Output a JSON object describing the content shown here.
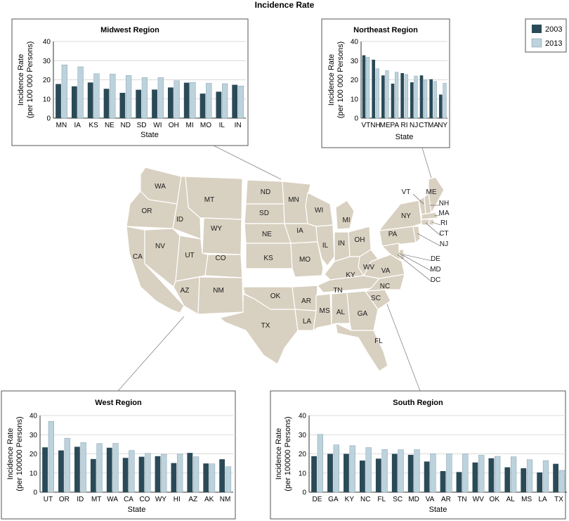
{
  "title": "Incidence Rate",
  "legend": {
    "placement": "top-right",
    "items": [
      {
        "label": "2003",
        "color": "#2a4a58"
      },
      {
        "label": "2013",
        "color": "#bcd2dc"
      }
    ]
  },
  "colors": {
    "map_fill": "#d8d0c0",
    "map_stroke": "#ffffff",
    "frame": "#555555",
    "connector": "#888888"
  },
  "map_labels": [
    "WA",
    "OR",
    "CA",
    "ID",
    "NV",
    "MT",
    "WY",
    "UT",
    "CO",
    "AZ",
    "NM",
    "ND",
    "SD",
    "NE",
    "KS",
    "OK",
    "TX",
    "MN",
    "IA",
    "MO",
    "AR",
    "LA",
    "WI",
    "IL",
    "MI",
    "IN",
    "OH",
    "KY",
    "TN",
    "MS",
    "AL",
    "GA",
    "FL",
    "SC",
    "NC",
    "VA",
    "WV",
    "PA",
    "NY",
    "VT",
    "ME",
    "NH",
    "MA",
    "RI",
    "CT",
    "NJ",
    "DE",
    "MD",
    "DC"
  ],
  "chart_data": [
    {
      "type": "bar",
      "title": "Midwest Region",
      "xlabel": "State",
      "ylabel": [
        "Incidence Rate",
        "(per 100 000 Persons)"
      ],
      "ylim": [
        0,
        40
      ],
      "yticks": [
        0,
        10,
        20,
        30,
        40
      ],
      "grid": true,
      "categories": [
        "MN",
        "IA",
        "KS",
        "NE",
        "ND",
        "SD",
        "WI",
        "OH",
        "MI",
        "MO",
        "IL",
        "IN"
      ],
      "series": [
        {
          "name": "2003",
          "values": [
            17.8,
            16.6,
            18.6,
            15.3,
            13.2,
            14.8,
            14.9,
            16.0,
            18.5,
            12.8,
            13.8,
            17.4
          ]
        },
        {
          "name": "2013",
          "values": [
            27.8,
            26.8,
            23.2,
            23.0,
            22.3,
            21.2,
            21.2,
            19.5,
            18.7,
            18.2,
            18.0,
            16.8
          ]
        }
      ]
    },
    {
      "type": "bar",
      "title": "Northeast Region",
      "xlabel": "State",
      "ylabel": [
        "Incidence Rate",
        "(per 100 000 Persons)"
      ],
      "ylim": [
        0,
        40
      ],
      "yticks": [
        0,
        10,
        20,
        30,
        40
      ],
      "grid": true,
      "categories": [
        "VT",
        "NH",
        "ME",
        "PA",
        "RI",
        "NJ",
        "CT",
        "MA",
        "NY"
      ],
      "series": [
        {
          "name": "2003",
          "values": [
            32.8,
            30.5,
            22.3,
            18.0,
            23.5,
            18.7,
            22.3,
            20.3,
            12.3
          ]
        },
        {
          "name": "2013",
          "values": [
            31.8,
            25.8,
            24.8,
            24.0,
            22.8,
            22.0,
            20.0,
            19.2,
            18.2
          ]
        }
      ]
    },
    {
      "type": "bar",
      "title": "West Region",
      "xlabel": "State",
      "ylabel": [
        "Incidence Rate",
        "(per 100000 Persons)"
      ],
      "ylim": [
        0,
        40
      ],
      "yticks": [
        0,
        10,
        20,
        30,
        40
      ],
      "grid": true,
      "categories": [
        "UT",
        "OR",
        "ID",
        "MT",
        "WA",
        "CA",
        "CO",
        "WY",
        "HI",
        "AZ",
        "AK",
        "NM"
      ],
      "series": [
        {
          "name": "2003",
          "values": [
            23.4,
            21.8,
            23.7,
            17.3,
            23.2,
            17.9,
            18.5,
            18.8,
            15.2,
            20.5,
            15.0,
            17.2
          ]
        },
        {
          "name": "2013",
          "values": [
            37.0,
            28.2,
            25.9,
            25.4,
            25.5,
            21.8,
            20.3,
            19.8,
            19.9,
            18.5,
            14.8,
            13.3
          ]
        }
      ]
    },
    {
      "type": "bar",
      "title": "South Region",
      "xlabel": "State",
      "ylabel": [
        "Incidence Rate",
        "(per 100000 Persons)"
      ],
      "ylim": [
        0,
        40
      ],
      "yticks": [
        0,
        10,
        20,
        30,
        40
      ],
      "grid": true,
      "categories": [
        "DE",
        "GA",
        "KY",
        "NC",
        "FL",
        "SC",
        "MD",
        "VA",
        "AR",
        "TN",
        "WV",
        "OK",
        "AL",
        "MS",
        "LA",
        "TX"
      ],
      "series": [
        {
          "name": "2003",
          "values": [
            18.8,
            20.0,
            20.0,
            16.5,
            17.5,
            20.0,
            19.5,
            16.0,
            11.0,
            10.5,
            15.5,
            17.7,
            13.0,
            12.5,
            10.3,
            14.8
          ]
        },
        {
          "name": "2013",
          "values": [
            30.2,
            24.7,
            24.3,
            23.3,
            22.3,
            22.2,
            22.2,
            20.1,
            20.0,
            20.0,
            19.3,
            18.7,
            18.5,
            17.0,
            16.5,
            11.4
          ]
        }
      ]
    }
  ]
}
